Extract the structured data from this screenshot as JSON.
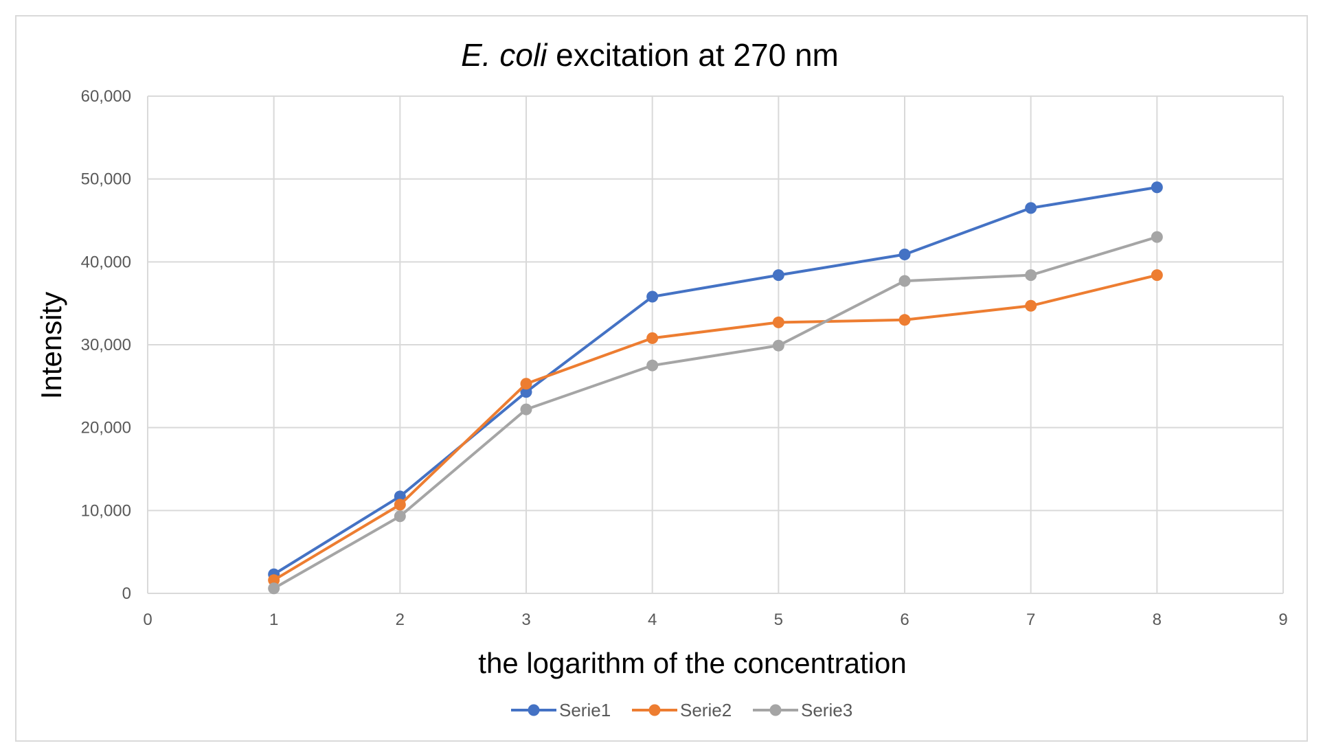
{
  "chart_data": {
    "type": "line",
    "title": {
      "italic": "E. coli",
      "rest": " excitation at 270 nm"
    },
    "xlabel": "the logarithm of the concentration",
    "ylabel": "Intensity",
    "xlim": [
      0,
      9
    ],
    "ylim": [
      0,
      60000
    ],
    "x_ticks": [
      "0",
      "1",
      "2",
      "3",
      "4",
      "5",
      "6",
      "7",
      "8",
      "9"
    ],
    "y_ticks": [
      "0",
      "10,000",
      "20,000",
      "30,000",
      "40,000",
      "50,000",
      "60,000"
    ],
    "grid": true,
    "legend_position": "bottom-center",
    "x": [
      1,
      2,
      3,
      4,
      5,
      6,
      7,
      8
    ],
    "series": [
      {
        "name": "Serie1",
        "color": "#4472c4",
        "values": [
          2300,
          11700,
          24300,
          35800,
          38400,
          40900,
          46500,
          49000
        ]
      },
      {
        "name": "Serie2",
        "color": "#ed7d31",
        "values": [
          1600,
          10700,
          25300,
          30800,
          32700,
          33000,
          34700,
          38400
        ]
      },
      {
        "name": "Serie3",
        "color": "#a5a5a5",
        "values": [
          600,
          9300,
          22200,
          27500,
          29900,
          37700,
          38400,
          43000
        ]
      }
    ]
  }
}
